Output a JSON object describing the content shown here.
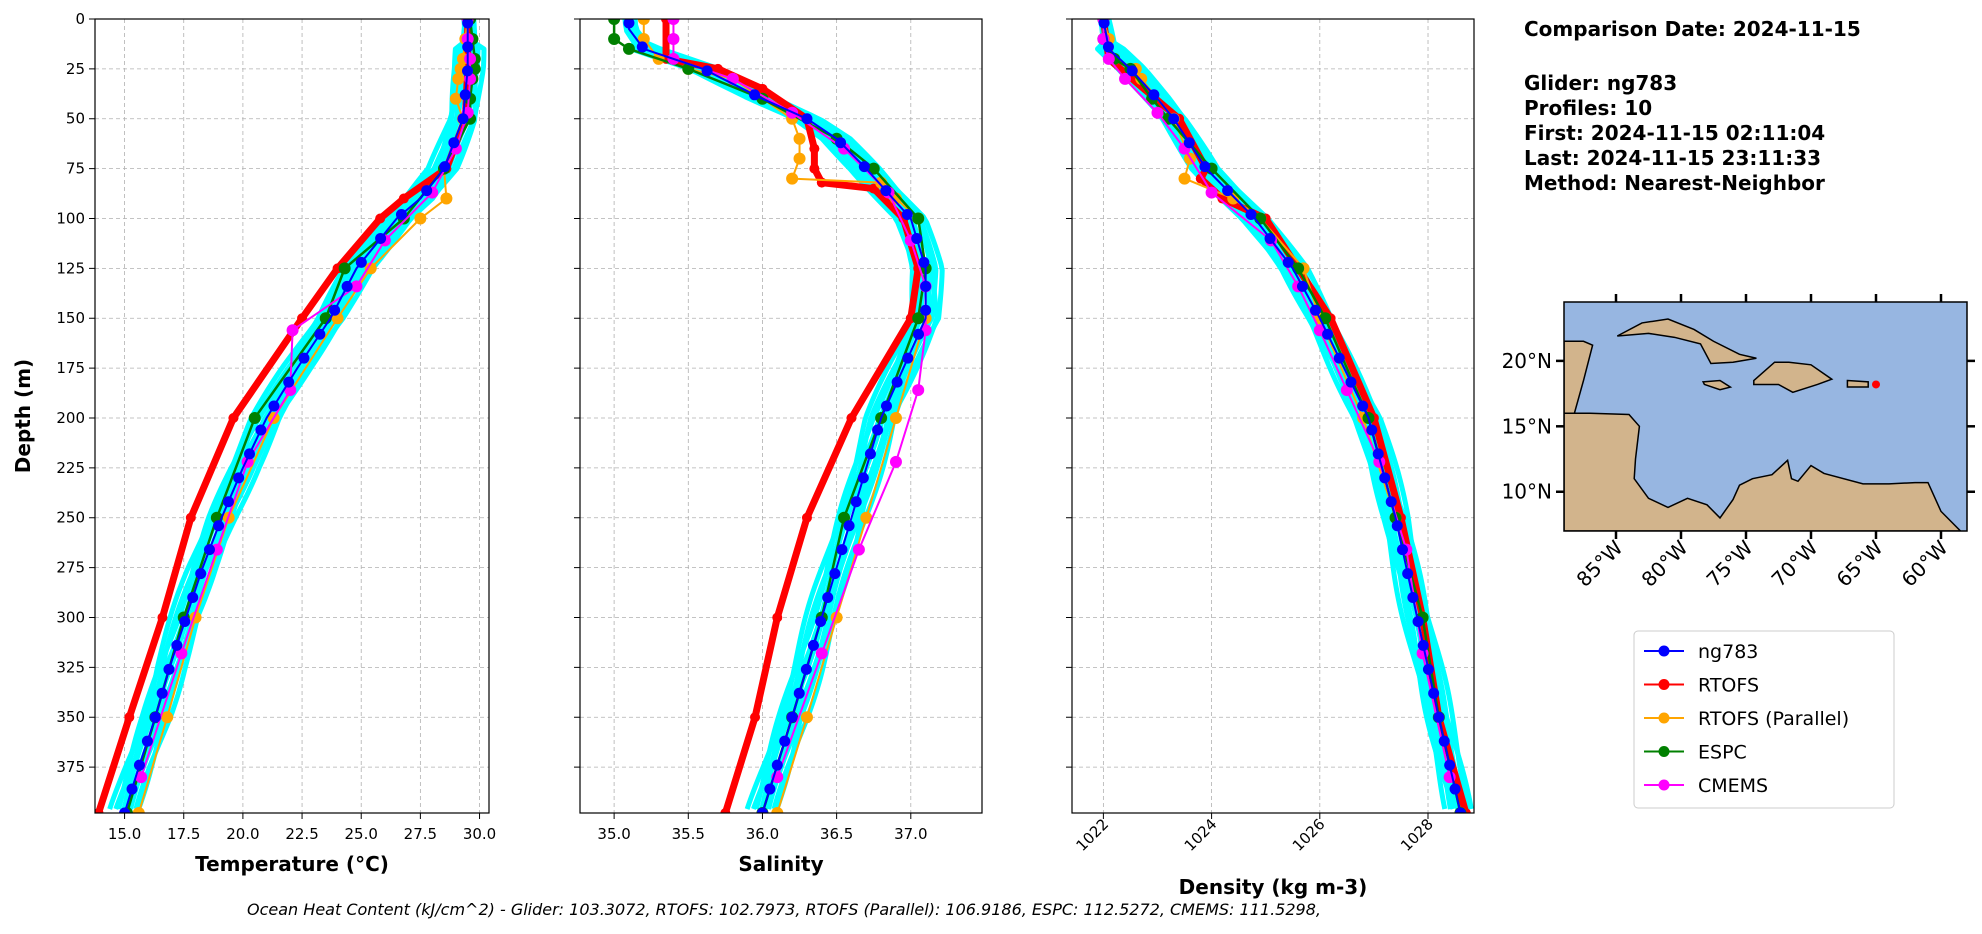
{
  "info": {
    "comparison_date": "Comparison Date: 2024-11-15",
    "glider": "Glider: ng783",
    "profiles": "Profiles: 10",
    "first": "First: 2024-11-15 02:11:04",
    "last": "Last: 2024-11-15 23:11:33",
    "method": "Method: Nearest-Neighbor"
  },
  "caption": "Ocean Heat Content (kJ/cm^2) - Glider: 103.3072,  RTOFS: 102.7973,  RTOFS (Parallel): 106.9186,  ESPC: 112.5272,  CMEMS: 111.5298,",
  "legend": [
    {
      "label": "ng783",
      "color": "#0000ff"
    },
    {
      "label": "RTOFS",
      "color": "#ff0000"
    },
    {
      "label": "RTOFS (Parallel)",
      "color": "#ffa500"
    },
    {
      "label": "ESPC",
      "color": "#008000"
    },
    {
      "label": "CMEMS",
      "color": "#ff00ff"
    }
  ],
  "map": {
    "lat_ticks": [
      "10°N",
      "15°N",
      "20°N"
    ],
    "lat_values": [
      10,
      15,
      20
    ],
    "lon_ticks": [
      "85°W",
      "80°W",
      "75°W",
      "70°W",
      "65°W",
      "60°W"
    ],
    "lon_values": [
      -85,
      -80,
      -75,
      -70,
      -65,
      -60
    ],
    "lon_range": [
      -89,
      -58
    ],
    "lat_range": [
      7,
      24.5
    ],
    "glider_location": {
      "lon": -65,
      "lat": 18.2
    },
    "ocean_color": "#97b6e1",
    "land_color": "#d2b48c"
  },
  "chart_data": [
    {
      "type": "line",
      "id": "temp",
      "xlabel": "Temperature (°C)",
      "ylabel": "Depth (m)",
      "xlim": [
        13.75,
        30.4
      ],
      "ylim": [
        398,
        0
      ],
      "xticks": [
        15,
        17.5,
        20,
        22.5,
        25,
        27.5,
        30
      ],
      "xtick_labels": [
        "15.0",
        "17.5",
        "20.0",
        "22.5",
        "25.0",
        "27.5",
        "30.0"
      ],
      "yticks": [
        0,
        25,
        50,
        75,
        100,
        125,
        150,
        175,
        200,
        225,
        250,
        275,
        300,
        325,
        350,
        375
      ],
      "yticklabels": [
        "0",
        "25",
        "50",
        "75",
        "100",
        "125",
        "150",
        "175",
        "200",
        "225",
        "250",
        "275",
        "300",
        "325",
        "350",
        "375"
      ],
      "glider_profile_spread": 0.55,
      "series": [
        {
          "name": "ng783",
          "depth": [
            0,
            25,
            50,
            75,
            90,
            100,
            125,
            150,
            175,
            200,
            225,
            250,
            275,
            300,
            325,
            350,
            375,
            398
          ],
          "values": [
            29.5,
            29.5,
            29.3,
            28.5,
            27.5,
            26.5,
            24.8,
            23.7,
            22.3,
            21.0,
            20.0,
            19.1,
            18.3,
            17.6,
            16.9,
            16.3,
            15.6,
            15.0
          ]
        },
        {
          "name": "RTOFS",
          "depth": [
            0,
            25,
            50,
            75,
            90,
            100,
            125,
            150,
            200,
            250,
            300,
            350,
            398
          ],
          "values": [
            29.5,
            29.5,
            29.4,
            28.6,
            26.8,
            25.8,
            24.0,
            22.5,
            19.6,
            17.8,
            16.6,
            15.2,
            13.9
          ]
        },
        {
          "name": "RTOFS (Parallel)",
          "depth": [
            0,
            10,
            20,
            25,
            30,
            40,
            50,
            75,
            90,
            100,
            125,
            150,
            200,
            250,
            300,
            350,
            398
          ],
          "values": [
            29.5,
            29.4,
            29.3,
            29.2,
            29.1,
            29.0,
            29.3,
            28.5,
            28.6,
            27.5,
            25.4,
            24.0,
            21.3,
            19.4,
            18.0,
            16.8,
            15.6
          ]
        },
        {
          "name": "ESPC",
          "depth": [
            0,
            10,
            20,
            25,
            30,
            40,
            50,
            75,
            100,
            125,
            150,
            200,
            250,
            300,
            350,
            398
          ],
          "values": [
            29.6,
            29.7,
            29.8,
            29.8,
            29.7,
            29.6,
            29.6,
            28.5,
            26.8,
            24.3,
            23.5,
            20.5,
            18.9,
            17.5,
            16.3,
            15.1
          ]
        },
        {
          "name": "CMEMS",
          "depth": [
            0,
            10,
            20,
            30,
            47,
            65,
            87,
            111,
            134,
            156,
            186,
            222,
            266,
            318,
            380
          ],
          "values": [
            29.5,
            29.5,
            29.6,
            29.6,
            29.5,
            29.0,
            28.0,
            26.0,
            24.8,
            22.1,
            22.0,
            20.2,
            18.9,
            17.4,
            15.7
          ]
        }
      ]
    },
    {
      "type": "line",
      "id": "sal",
      "xlabel": "Salinity",
      "xlim": [
        34.77,
        37.48
      ],
      "ylim": [
        398,
        0
      ],
      "xticks": [
        35,
        35.5,
        36,
        36.5,
        37
      ],
      "xtick_labels": [
        "35.0",
        "35.5",
        "36.0",
        "36.5",
        "37.0"
      ],
      "yticks": [
        0,
        25,
        50,
        75,
        100,
        125,
        150,
        175,
        200,
        225,
        250,
        275,
        300,
        325,
        350,
        375
      ],
      "glider_profile_spread": 0.09,
      "series": [
        {
          "name": "ng783",
          "depth": [
            0,
            5,
            15,
            25,
            40,
            50,
            60,
            75,
            100,
            125,
            150,
            175,
            200,
            225,
            250,
            275,
            300,
            350,
            398
          ],
          "values": [
            35.1,
            35.1,
            35.2,
            35.6,
            36.0,
            36.3,
            36.5,
            36.7,
            37.0,
            37.1,
            37.1,
            36.95,
            36.8,
            36.7,
            36.6,
            36.5,
            36.4,
            36.2,
            36.0
          ]
        },
        {
          "name": "RTOFS",
          "depth": [
            0,
            20,
            25,
            35,
            50,
            65,
            75,
            82,
            85,
            100,
            125,
            150,
            200,
            250,
            300,
            350,
            398
          ],
          "values": [
            35.35,
            35.35,
            35.7,
            36.0,
            36.3,
            36.35,
            36.35,
            36.4,
            36.75,
            36.95,
            37.05,
            37.0,
            36.6,
            36.3,
            36.1,
            35.95,
            35.75
          ]
        },
        {
          "name": "RTOFS (Parallel)",
          "depth": [
            0,
            10,
            20,
            25,
            30,
            50,
            60,
            70,
            80,
            82,
            90,
            100,
            125,
            150,
            200,
            250,
            300,
            350,
            398
          ],
          "values": [
            35.2,
            35.2,
            35.3,
            35.5,
            35.8,
            36.2,
            36.25,
            36.25,
            36.2,
            36.8,
            36.9,
            37.05,
            37.1,
            37.1,
            36.9,
            36.7,
            36.5,
            36.3,
            36.1
          ]
        },
        {
          "name": "ESPC",
          "depth": [
            0,
            10,
            15,
            25,
            40,
            60,
            75,
            100,
            125,
            150,
            200,
            250,
            300,
            350,
            398
          ],
          "values": [
            35.0,
            35.0,
            35.1,
            35.5,
            36.0,
            36.5,
            36.75,
            37.05,
            37.1,
            37.05,
            36.8,
            36.55,
            36.4,
            36.2,
            36.0
          ]
        },
        {
          "name": "CMEMS",
          "depth": [
            0,
            10,
            20,
            30,
            47,
            65,
            87,
            111,
            134,
            156,
            186,
            222,
            266,
            318,
            380
          ],
          "values": [
            35.4,
            35.4,
            35.4,
            35.8,
            36.2,
            36.55,
            36.85,
            37.0,
            37.1,
            37.1,
            37.05,
            36.9,
            36.65,
            36.4,
            36.1
          ]
        }
      ]
    },
    {
      "type": "line",
      "id": "dens",
      "xlabel": "Density (kg m-3)",
      "xlim": [
        1021.42,
        1028.85
      ],
      "ylim": [
        398,
        0
      ],
      "xticks": [
        1022,
        1024,
        1026,
        1028
      ],
      "xtick_labels": [
        "1022",
        "1024",
        "1026",
        "1028"
      ],
      "yticks": [
        0,
        25,
        50,
        75,
        100,
        125,
        150,
        175,
        200,
        225,
        250,
        275,
        300,
        325,
        350,
        375
      ],
      "glider_profile_spread": 0.22,
      "series": [
        {
          "name": "ng783",
          "depth": [
            0,
            15,
            25,
            40,
            50,
            75,
            100,
            125,
            150,
            200,
            250,
            300,
            350,
            398
          ],
          "values": [
            1022.0,
            1022.1,
            1022.5,
            1023.0,
            1023.3,
            1023.9,
            1024.8,
            1025.5,
            1026.0,
            1026.9,
            1027.4,
            1027.8,
            1028.2,
            1028.6
          ]
        },
        {
          "name": "RTOFS",
          "depth": [
            0,
            20,
            50,
            75,
            80,
            90,
            100,
            125,
            150,
            200,
            250,
            300,
            350,
            398
          ],
          "values": [
            1022.0,
            1022.1,
            1023.4,
            1023.9,
            1023.8,
            1024.2,
            1025.0,
            1025.6,
            1026.2,
            1027.0,
            1027.5,
            1027.9,
            1028.2,
            1028.7
          ]
        },
        {
          "name": "RTOFS (Parallel)",
          "depth": [
            0,
            10,
            20,
            25,
            30,
            50,
            70,
            80,
            90,
            100,
            125,
            150,
            200,
            250,
            300,
            350,
            398
          ],
          "values": [
            1022.0,
            1022.1,
            1022.2,
            1022.6,
            1022.7,
            1023.3,
            1023.6,
            1023.5,
            1024.4,
            1024.9,
            1025.7,
            1026.0,
            1026.8,
            1027.4,
            1027.9,
            1028.2,
            1028.6
          ]
        },
        {
          "name": "ESPC",
          "depth": [
            0,
            10,
            20,
            25,
            40,
            50,
            75,
            100,
            125,
            150,
            200,
            250,
            300,
            350,
            398
          ],
          "values": [
            1022.0,
            1022.0,
            1022.2,
            1022.5,
            1022.9,
            1023.2,
            1024.0,
            1024.9,
            1025.6,
            1026.1,
            1026.9,
            1027.4,
            1027.9,
            1028.2,
            1028.6
          ]
        },
        {
          "name": "CMEMS",
          "depth": [
            0,
            10,
            20,
            30,
            47,
            65,
            87,
            111,
            134,
            156,
            186,
            222,
            266,
            318,
            380
          ],
          "values": [
            1022.0,
            1022.0,
            1022.1,
            1022.4,
            1023.0,
            1023.5,
            1024.0,
            1025.1,
            1025.6,
            1026.0,
            1026.5,
            1027.1,
            1027.6,
            1027.9,
            1028.4
          ]
        }
      ]
    }
  ]
}
